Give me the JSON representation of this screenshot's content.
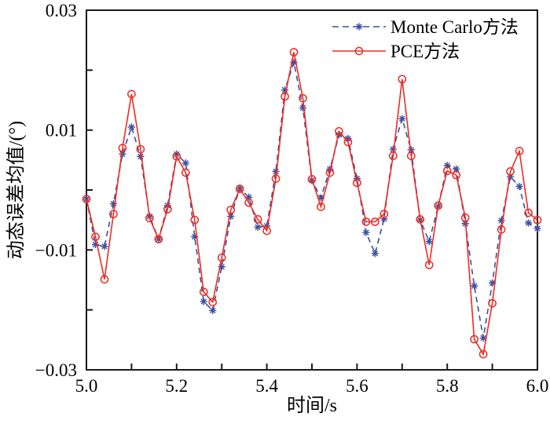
{
  "figure": {
    "background": "#ffffff",
    "frame_color": "#1a1a1a"
  },
  "chart_data": {
    "type": "line",
    "title": "",
    "xlabel": "时间/s",
    "ylabel": "动态误差均值/(°)",
    "xlim": [
      5.0,
      6.0
    ],
    "ylim": [
      -0.03,
      0.03
    ],
    "grid": false,
    "legend_position": "top-right",
    "x_minor_ticks": [
      5.0,
      5.1,
      5.2,
      5.3,
      5.4,
      5.5,
      5.6,
      5.7,
      5.8,
      5.9,
      6.0
    ],
    "x_labeled_ticks": [
      {
        "value": 5.0,
        "label": "5.0"
      },
      {
        "value": 5.2,
        "label": "5.2"
      },
      {
        "value": 5.4,
        "label": "5.4"
      },
      {
        "value": 5.6,
        "label": "5.6"
      },
      {
        "value": 5.8,
        "label": "5.8"
      },
      {
        "value": 6.0,
        "label": "6.0"
      }
    ],
    "y_minor_ticks": [
      -0.03,
      -0.02,
      -0.01,
      0,
      0.01,
      0.02,
      0.03
    ],
    "y_labeled_ticks": [
      {
        "value": 0.03,
        "label": "0.03"
      },
      {
        "value": 0.01,
        "label": "0.01"
      },
      {
        "value": -0.01,
        "label": "−0.01"
      },
      {
        "value": -0.03,
        "label": "−0.03"
      }
    ],
    "x": [
      5.0,
      5.02,
      5.04,
      5.06,
      5.08,
      5.1,
      5.12,
      5.14,
      5.16,
      5.18,
      5.2,
      5.22,
      5.24,
      5.26,
      5.28,
      5.3,
      5.32,
      5.34,
      5.36,
      5.38,
      5.4,
      5.42,
      5.44,
      5.46,
      5.48,
      5.5,
      5.52,
      5.54,
      5.56,
      5.58,
      5.6,
      5.62,
      5.64,
      5.66,
      5.68,
      5.7,
      5.72,
      5.74,
      5.76,
      5.78,
      5.8,
      5.82,
      5.84,
      5.86,
      5.88,
      5.9,
      5.92,
      5.94,
      5.96,
      5.98,
      6.0
    ],
    "series": [
      {
        "name": "Monte Carlo方法",
        "color": "#3c4fa1",
        "line": "dashed",
        "marker": "asterisk",
        "values": [
          -0.0015,
          -0.0091,
          -0.0094,
          -0.0023,
          0.006,
          0.0105,
          0.0056,
          -0.0044,
          -0.0082,
          -0.0026,
          0.006,
          0.0045,
          -0.0078,
          -0.0186,
          -0.0201,
          -0.0128,
          -0.0044,
          0.0003,
          -0.0012,
          -0.0062,
          -0.006,
          0.0031,
          0.0167,
          0.0213,
          0.0137,
          0.0016,
          -0.0013,
          0.0035,
          0.0092,
          0.0086,
          0.0019,
          -0.0071,
          -0.0106,
          -0.0048,
          0.0068,
          0.0119,
          0.0067,
          -0.005,
          -0.0086,
          -0.0027,
          0.0041,
          0.0035,
          -0.0056,
          -0.016,
          -0.0247,
          -0.0155,
          -0.0051,
          0.0022,
          0.0006,
          -0.0055,
          -0.0064
        ]
      },
      {
        "name": "PCE方法",
        "color": "#ee2b22",
        "line": "solid",
        "marker": "circle",
        "values": [
          -0.0015,
          -0.0078,
          -0.0149,
          -0.004,
          0.007,
          0.016,
          0.0068,
          -0.0047,
          -0.0082,
          -0.0032,
          0.0056,
          0.0029,
          -0.005,
          -0.017,
          -0.0187,
          -0.0113,
          -0.0033,
          0.0002,
          -0.0021,
          -0.0049,
          -0.0068,
          0.0019,
          0.0156,
          0.023,
          0.0153,
          0.0018,
          -0.0028,
          0.0029,
          0.0098,
          0.008,
          0.0012,
          -0.0053,
          -0.0053,
          -0.004,
          0.0057,
          0.0185,
          0.0057,
          -0.0049,
          -0.0125,
          -0.0026,
          0.0032,
          0.0025,
          -0.0046,
          -0.0249,
          -0.0274,
          -0.0189,
          -0.0066,
          0.0031,
          0.0065,
          -0.0038,
          -0.005
        ]
      }
    ]
  }
}
